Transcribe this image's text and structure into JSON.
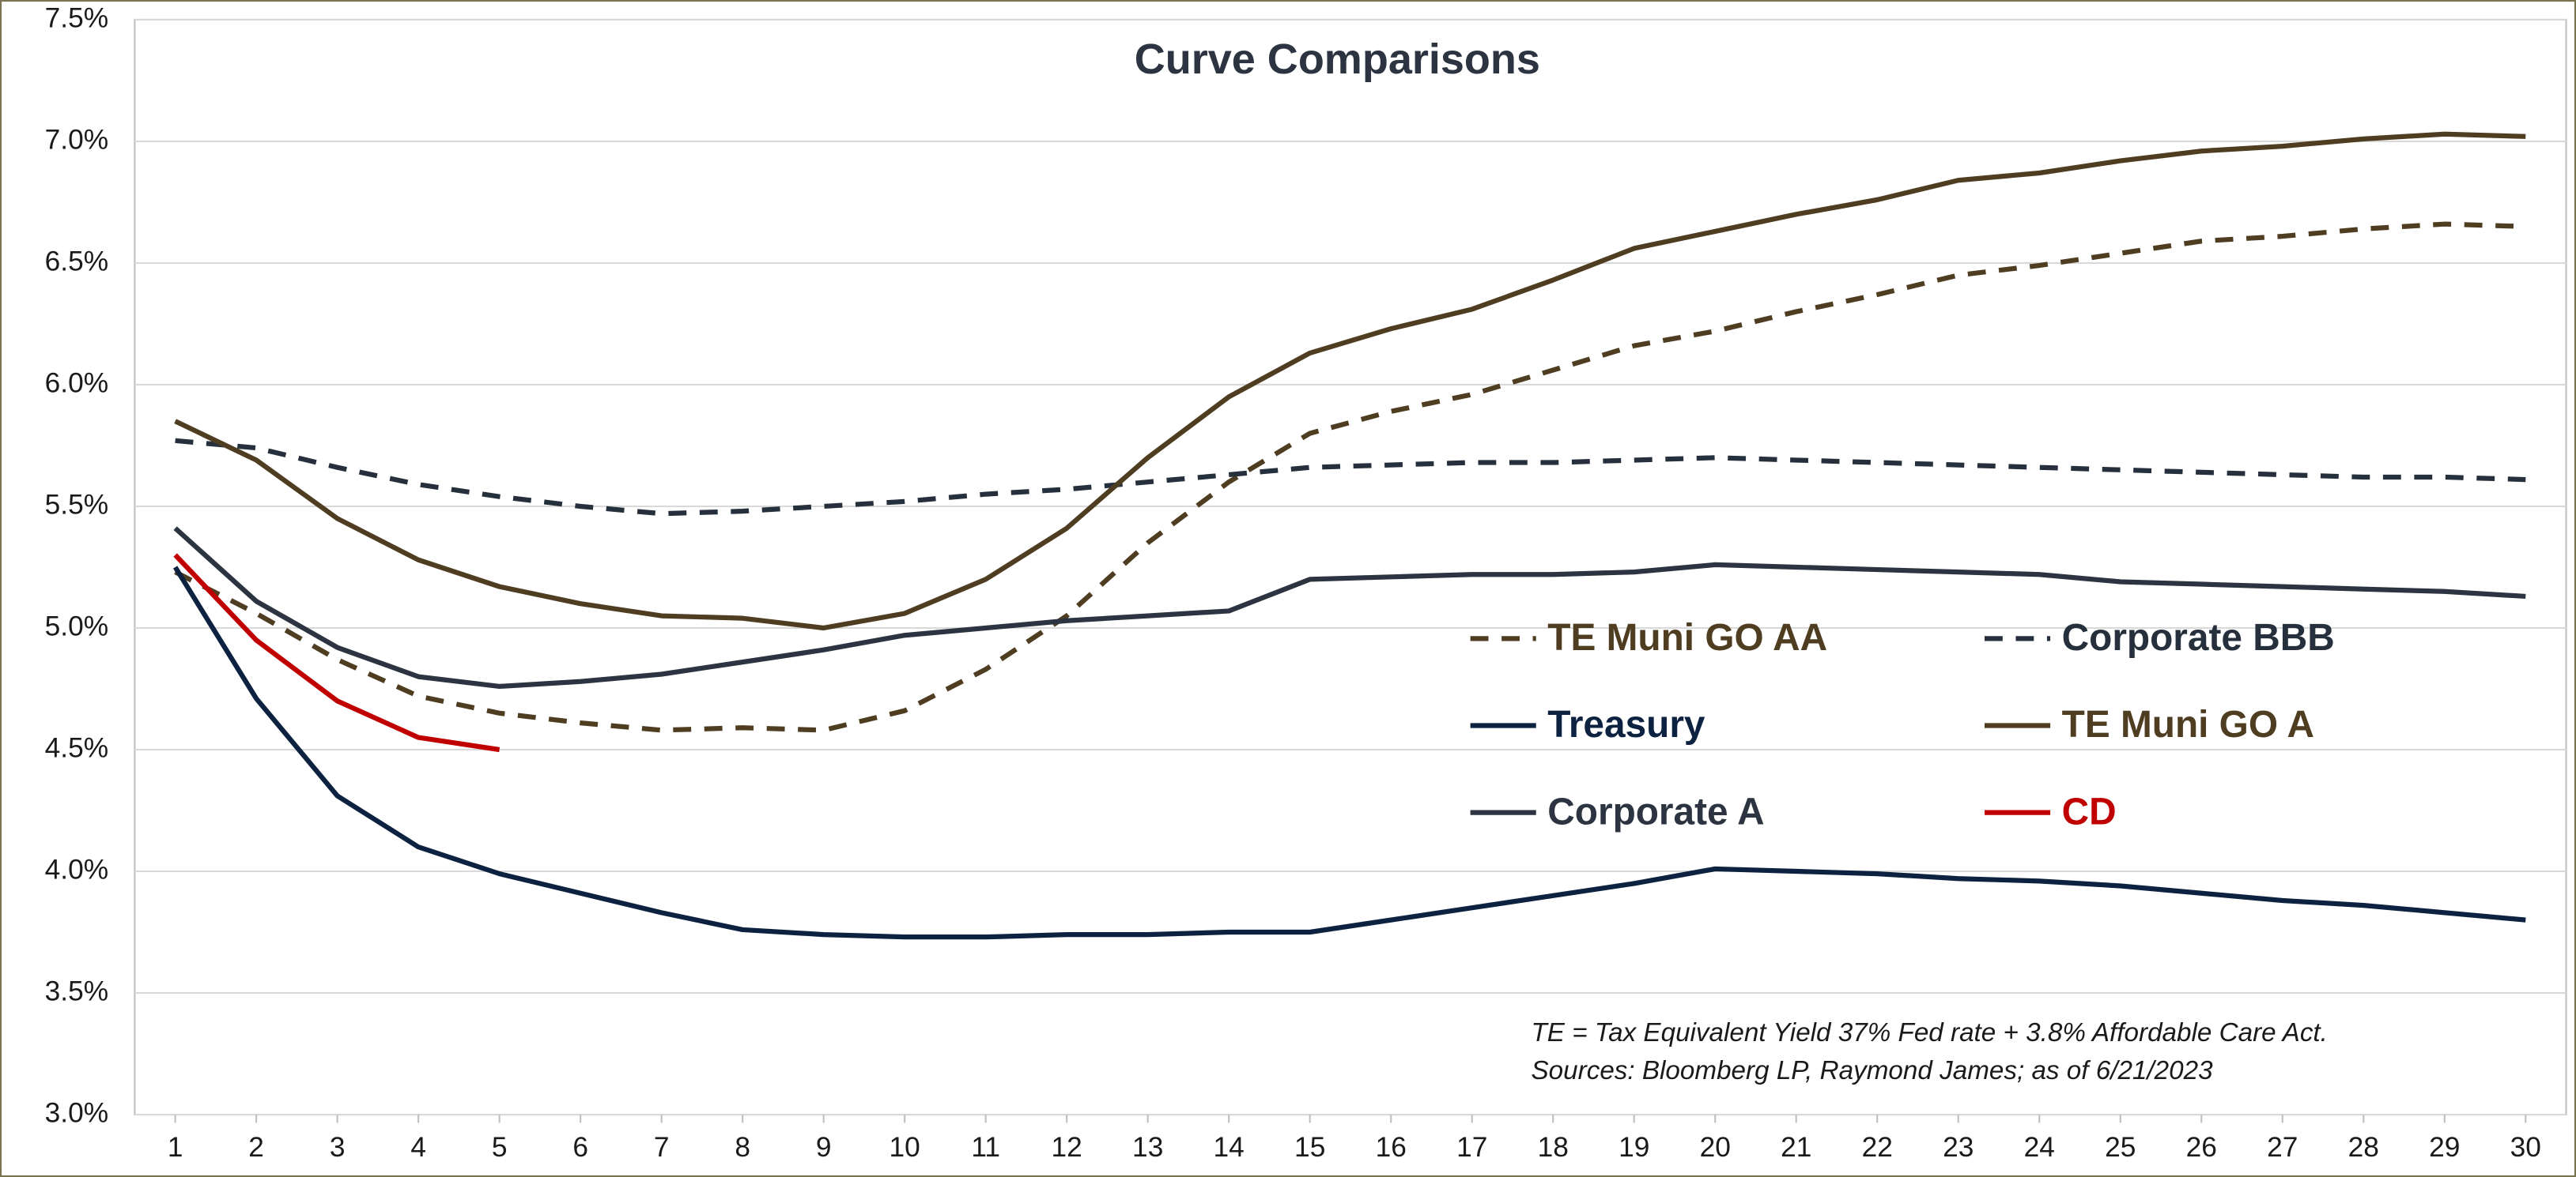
{
  "chart_data": {
    "type": "line",
    "title": "Curve Comparisons",
    "x": [
      1,
      2,
      3,
      4,
      5,
      6,
      7,
      8,
      9,
      10,
      11,
      12,
      13,
      14,
      15,
      16,
      17,
      18,
      19,
      20,
      21,
      22,
      23,
      24,
      25,
      26,
      27,
      28,
      29,
      30
    ],
    "xlim": [
      0.5,
      30.5
    ],
    "xticks": [
      1,
      2,
      3,
      4,
      5,
      6,
      7,
      8,
      9,
      10,
      11,
      12,
      13,
      14,
      15,
      16,
      17,
      18,
      19,
      20,
      21,
      22,
      23,
      24,
      25,
      26,
      27,
      28,
      29,
      30
    ],
    "ylim": [
      3.0,
      7.5
    ],
    "yticks": [
      {
        "value": 3.0,
        "label": "3.0%"
      },
      {
        "value": 3.5,
        "label": "3.5%"
      },
      {
        "value": 4.0,
        "label": "4.0%"
      },
      {
        "value": 4.5,
        "label": "4.5%"
      },
      {
        "value": 5.0,
        "label": "5.0%"
      },
      {
        "value": 5.5,
        "label": "5.5%"
      },
      {
        "value": 6.0,
        "label": "6.0%"
      },
      {
        "value": 6.5,
        "label": "6.5%"
      },
      {
        "value": 7.0,
        "label": "7.0%"
      },
      {
        "value": 7.5,
        "label": "7.5%"
      }
    ],
    "grid": true,
    "series": [
      {
        "name": "TE Muni GO AA",
        "color": "#4f3d22",
        "dashed": true,
        "values": [
          5.23,
          5.06,
          4.87,
          4.72,
          4.65,
          4.61,
          4.58,
          4.59,
          4.58,
          4.66,
          4.83,
          5.05,
          5.35,
          5.6,
          5.8,
          5.89,
          5.96,
          6.06,
          6.16,
          6.22,
          6.3,
          6.37,
          6.45,
          6.49,
          6.54,
          6.59,
          6.61,
          6.64,
          6.66,
          6.65
        ]
      },
      {
        "name": "Corporate BBB",
        "color": "#26303c",
        "dashed": true,
        "values": [
          5.77,
          5.74,
          5.66,
          5.59,
          5.54,
          5.5,
          5.47,
          5.48,
          5.5,
          5.52,
          5.55,
          5.57,
          5.6,
          5.63,
          5.66,
          5.67,
          5.68,
          5.68,
          5.69,
          5.7,
          5.69,
          5.68,
          5.67,
          5.66,
          5.65,
          5.64,
          5.63,
          5.62,
          5.62,
          5.61
        ]
      },
      {
        "name": "Treasury",
        "color": "#0d2240",
        "dashed": false,
        "values": [
          5.25,
          4.71,
          4.31,
          4.1,
          3.99,
          3.91,
          3.83,
          3.76,
          3.74,
          3.73,
          3.73,
          3.74,
          3.74,
          3.75,
          3.75,
          3.8,
          3.85,
          3.9,
          3.95,
          4.01,
          4.0,
          3.99,
          3.97,
          3.96,
          3.94,
          3.91,
          3.88,
          3.86,
          3.83,
          3.8
        ]
      },
      {
        "name": "TE Muni GO A",
        "color": "#4f3d22",
        "dashed": false,
        "values": [
          5.85,
          5.69,
          5.45,
          5.28,
          5.17,
          5.1,
          5.05,
          5.04,
          5.0,
          5.06,
          5.2,
          5.41,
          5.7,
          5.95,
          6.13,
          6.23,
          6.31,
          6.43,
          6.56,
          6.63,
          6.7,
          6.76,
          6.84,
          6.87,
          6.92,
          6.96,
          6.98,
          7.01,
          7.03,
          7.02
        ]
      },
      {
        "name": "Corporate A",
        "color": "#2b3440",
        "dashed": false,
        "values": [
          5.41,
          5.11,
          4.92,
          4.8,
          4.76,
          4.78,
          4.81,
          4.86,
          4.91,
          4.97,
          5.0,
          5.03,
          5.05,
          5.07,
          5.2,
          5.21,
          5.22,
          5.22,
          5.23,
          5.26,
          5.25,
          5.24,
          5.23,
          5.22,
          5.19,
          5.18,
          5.17,
          5.16,
          5.15,
          5.13
        ]
      },
      {
        "name": "CD",
        "color": "#c00000",
        "dashed": false,
        "values": [
          5.3,
          4.95,
          4.7,
          4.55,
          4.5,
          null,
          null,
          null,
          null,
          null,
          null,
          null,
          null,
          null,
          null,
          null,
          null,
          null,
          null,
          null,
          null,
          null,
          null,
          null,
          null,
          null,
          null,
          null,
          null,
          null
        ]
      }
    ],
    "annotations": [
      "TE = Tax Equivalent Yield 37%  Fed rate + 3.8% Affordable Care Act.",
      "Sources: Bloomberg LP, Raymond James; as of  6/21/2023"
    ]
  }
}
